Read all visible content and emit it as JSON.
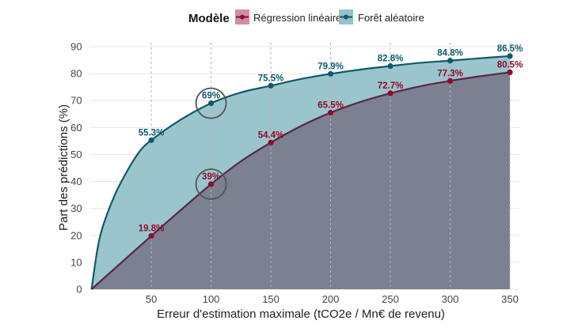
{
  "chart_data": {
    "type": "area",
    "title": "",
    "xlabel": "Erreur d'estimation maximale (tCO2e / Mn€ de revenu)",
    "ylabel": "Part des prédictions (%)",
    "xlim": [
      0,
      350
    ],
    "ylim": [
      0,
      90
    ],
    "xticks": [
      50,
      100,
      150,
      200,
      250,
      300,
      350
    ],
    "yticks": [
      0,
      10,
      20,
      30,
      40,
      50,
      60,
      70,
      80,
      90
    ],
    "grid": true,
    "legend": {
      "title": "Modèle",
      "position": "top"
    },
    "series": [
      {
        "name": "Forêt aléatoire",
        "line_color": "#0f5a6c",
        "fill_color": "#96c2c9",
        "curve": {
          "x": [
            0,
            5,
            10,
            20,
            30,
            40,
            50,
            75,
            100,
            125,
            150,
            175,
            200,
            225,
            250,
            275,
            300,
            325,
            350
          ],
          "y": [
            0,
            15,
            24,
            35.5,
            44,
            51,
            55.3,
            63,
            69,
            73,
            75.5,
            78,
            79.9,
            81.5,
            82.8,
            84,
            84.8,
            85.7,
            86.5
          ]
        },
        "points": {
          "x": [
            50,
            100,
            150,
            200,
            250,
            300,
            350
          ],
          "y": [
            55.3,
            69,
            75.5,
            79.9,
            82.8,
            84.8,
            86.5
          ],
          "labels": [
            "55.3%",
            "69%",
            "75.5%",
            "79.9%",
            "82.8%",
            "84.8%",
            "86.5%"
          ]
        }
      },
      {
        "name": "Régression linéaire",
        "line_color": "#5b2747",
        "point_color": "#8e0c2c",
        "fill_color": "#7a7f8f",
        "curve": {
          "x": [
            0,
            50,
            75,
            100,
            125,
            150,
            175,
            200,
            225,
            250,
            275,
            300,
            325,
            350
          ],
          "y": [
            0,
            19.8,
            29.5,
            39,
            47.5,
            54.4,
            60.5,
            65.5,
            69.5,
            72.7,
            75.3,
            77.3,
            79,
            80.5
          ]
        },
        "points": {
          "x": [
            50,
            100,
            150,
            200,
            250,
            300,
            350
          ],
          "y": [
            19.8,
            39,
            54.4,
            65.5,
            72.7,
            77.3,
            80.5
          ],
          "labels": [
            "19.8%",
            "39%",
            "54.4%",
            "65.5%",
            "72.7%",
            "77.3%",
            "80.5%"
          ]
        }
      }
    ],
    "annotations": [
      {
        "type": "circle",
        "x": 100,
        "y": 69
      },
      {
        "type": "circle",
        "x": 100,
        "y": 39
      }
    ]
  }
}
